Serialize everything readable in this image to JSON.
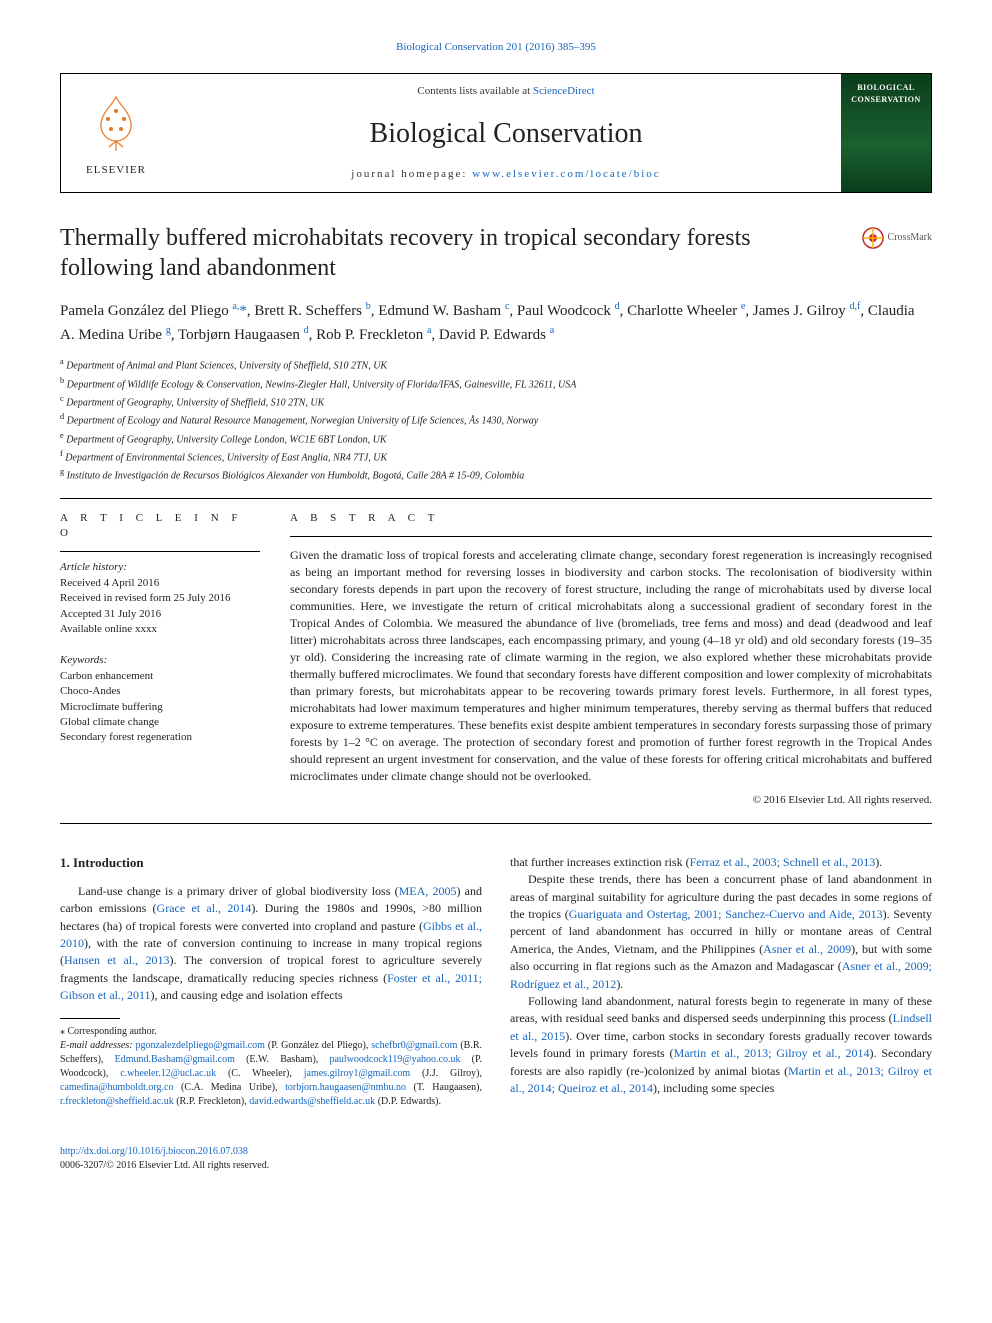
{
  "top_link": "Biological Conservation 201 (2016) 385–395",
  "header": {
    "elsevier": "ELSEVIER",
    "contents_prefix": "Contents lists available at ",
    "contents_link": "ScienceDirect",
    "journal": "Biological Conservation",
    "homepage_prefix": "journal homepage: ",
    "homepage_url": "www.elsevier.com/locate/bioc",
    "cover_title": "BIOLOGICAL CONSERVATION"
  },
  "crossmark": "CrossMark",
  "title": "Thermally buffered microhabitats recovery in tropical secondary forests following land abandonment",
  "authors_html": "Pamela González del Pliego <sup>a,</sup><span class='star'>*</span>, Brett R. Scheffers <sup>b</sup>, Edmund W. Basham <sup>c</sup>, Paul Woodcock <sup>d</sup>, Charlotte Wheeler <sup>e</sup>, James J. Gilroy <sup>d,f</sup>, Claudia A. Medina Uribe <sup>g</sup>, Torbjørn Haugaasen <sup>d</sup>, Rob P. Freckleton <sup>a</sup>, David P. Edwards <sup>a</sup>",
  "affiliations": [
    "a  Department of Animal and Plant Sciences, University of Sheffield, S10 2TN, UK",
    "b  Department of Wildlife Ecology & Conservation, Newins-Ziegler Hall, University of Florida/IFAS, Gainesville, FL 32611, USA",
    "c  Department of Geography, University of Sheffield, S10 2TN, UK",
    "d  Department of Ecology and Natural Resource Management, Norwegian University of Life Sciences, Ås 1430, Norway",
    "e  Department of Geography, University College London, WC1E 6BT London, UK",
    "f  Department of Environmental Sciences, University of East Anglia, NR4 7TJ, UK",
    "g  Instituto de Investigación de Recursos Biológicos Alexander von Humboldt, Bogotá, Calle 28A # 15-09, Colombia"
  ],
  "info": {
    "head": "A R T I C L E   I N F O",
    "history_label": "Article history:",
    "history": [
      "Received 4 April 2016",
      "Received in revised form 25 July 2016",
      "Accepted 31 July 2016",
      "Available online xxxx"
    ],
    "keywords_label": "Keywords:",
    "keywords": [
      "Carbon enhancement",
      "Choco-Andes",
      "Microclimate buffering",
      "Global climate change",
      "Secondary forest regeneration"
    ]
  },
  "abstract": {
    "head": "A B S T R A C T",
    "text": "Given the dramatic loss of tropical forests and accelerating climate change, secondary forest regeneration is increasingly recognised as being an important method for reversing losses in biodiversity and carbon stocks. The recolonisation of biodiversity within secondary forests depends in part upon the recovery of forest structure, including the range of microhabitats used by diverse local communities. Here, we investigate the return of critical microhabitats along a successional gradient of secondary forest in the Tropical Andes of Colombia. We measured the abundance of live (bromeliads, tree ferns and moss) and dead (deadwood and leaf litter) microhabitats across three landscapes, each encompassing primary, and young (4–18 yr old) and old secondary forests (19–35 yr old). Considering the increasing rate of climate warming in the region, we also explored whether these microhabitats provide thermally buffered microclimates. We found that secondary forests have different composition and lower complexity of microhabitats than primary forests, but microhabitats appear to be recovering towards primary forest levels. Furthermore, in all forest types, microhabitats had lower maximum temperatures and higher minimum temperatures, thereby serving as thermal buffers that reduced exposure to extreme temperatures. These benefits exist despite ambient temperatures in secondary forests surpassing those of primary forests by 1–2 °C on average. The protection of secondary forest and promotion of further forest regrowth in the Tropical Andes should represent an urgent investment for conservation, and the value of these forests for offering critical microhabitats and buffered microclimates under climate change should not be overlooked.",
    "copyright": "© 2016 Elsevier Ltd. All rights reserved."
  },
  "section_heading": "1. Introduction",
  "col1": {
    "p1a": "Land-use change is a primary driver of global biodiversity loss (",
    "p1r1": "MEA, 2005",
    "p1b": ") and carbon emissions (",
    "p1r2": "Grace et al., 2014",
    "p1c": "). During the 1980s and 1990s, >80 million hectares (ha) of tropical forests were converted into cropland and pasture (",
    "p1r3": "Gibbs et al., 2010",
    "p1d": "), with the rate of conversion continuing to increase in many tropical regions (",
    "p1r4": "Hansen et al., 2013",
    "p1e": "). The conversion of tropical forest to agriculture severely fragments the landscape, dramatically reducing species richness (",
    "p1r5": "Foster et al., 2011; Gibson et al., 2011",
    "p1f": "), and causing edge and isolation effects"
  },
  "footnotes": {
    "corr": "⁎  Corresponding author.",
    "email_label": "E-mail addresses: ",
    "emails_html": "<a>pgonzalezdelpliego@gmail.com</a> (P. González del Pliego), <a>schefbr0@gmail.com</a> (B.R. Scheffers), <a>Edmund.Basham@gmail.com</a> (E.W. Basham), <a>paulwoodcock119@yahoo.co.uk</a> (P. Woodcock), <a>c.wheeler.12@ucl.ac.uk</a> (C. Wheeler), <a>james.gilroy1@gmail.com</a> (J.J. Gilroy), <a>camedina@humboldt.org.co</a> (C.A. Medina Uribe), <a>torbjorn.haugaasen@nmbu.no</a> (T. Haugaasen), <a>r.freckleton@sheffield.ac.uk</a> (R.P. Freckleton), <a>david.edwards@sheffield.ac.uk</a> (D.P. Edwards)."
  },
  "col2": {
    "p1a": "that further increases extinction risk (",
    "p1r1": "Ferraz et al., 2003; Schnell et al., 2013",
    "p1b": ").",
    "p2a": "Despite these trends, there has been a concurrent phase of land abandonment in areas of marginal suitability for agriculture during the past decades in some regions of the tropics (",
    "p2r1": "Guariguata and Ostertag, 2001; Sanchez-Cuervo and Aide, 2013",
    "p2b": "). Seventy percent of land abandonment has occurred in hilly or montane areas of Central America, the Andes, Vietnam, and the Philippines (",
    "p2r2": "Asner et al., 2009",
    "p2c": "), but with some also occurring in flat regions such as the Amazon and Madagascar (",
    "p2r3": "Asner et al., 2009; Rodríguez et al., 2012",
    "p2d": ").",
    "p3a": "Following land abandonment, natural forests begin to regenerate in many of these areas, with residual seed banks and dispersed seeds underpinning this process (",
    "p3r1": "Lindsell et al., 2015",
    "p3b": "). Over time, carbon stocks in secondary forests gradually recover towards levels found in primary forests (",
    "p3r2": "Martin et al., 2013; Gilroy et al., 2014",
    "p3c": "). Secondary forests are also rapidly (re-)colonized by animal biotas (",
    "p3r3": "Martin et al., 2013; Gilroy et al., 2014; Queiroz et al., 2014",
    "p3d": "), including some species"
  },
  "footer": {
    "doi": "http://dx.doi.org/10.1016/j.biocon.2016.07.038",
    "issn": "0006-3207/© 2016 Elsevier Ltd. All rights reserved."
  },
  "colors": {
    "link": "#1565c0",
    "text": "#222222",
    "cover_bg": "#0a3d1a"
  }
}
